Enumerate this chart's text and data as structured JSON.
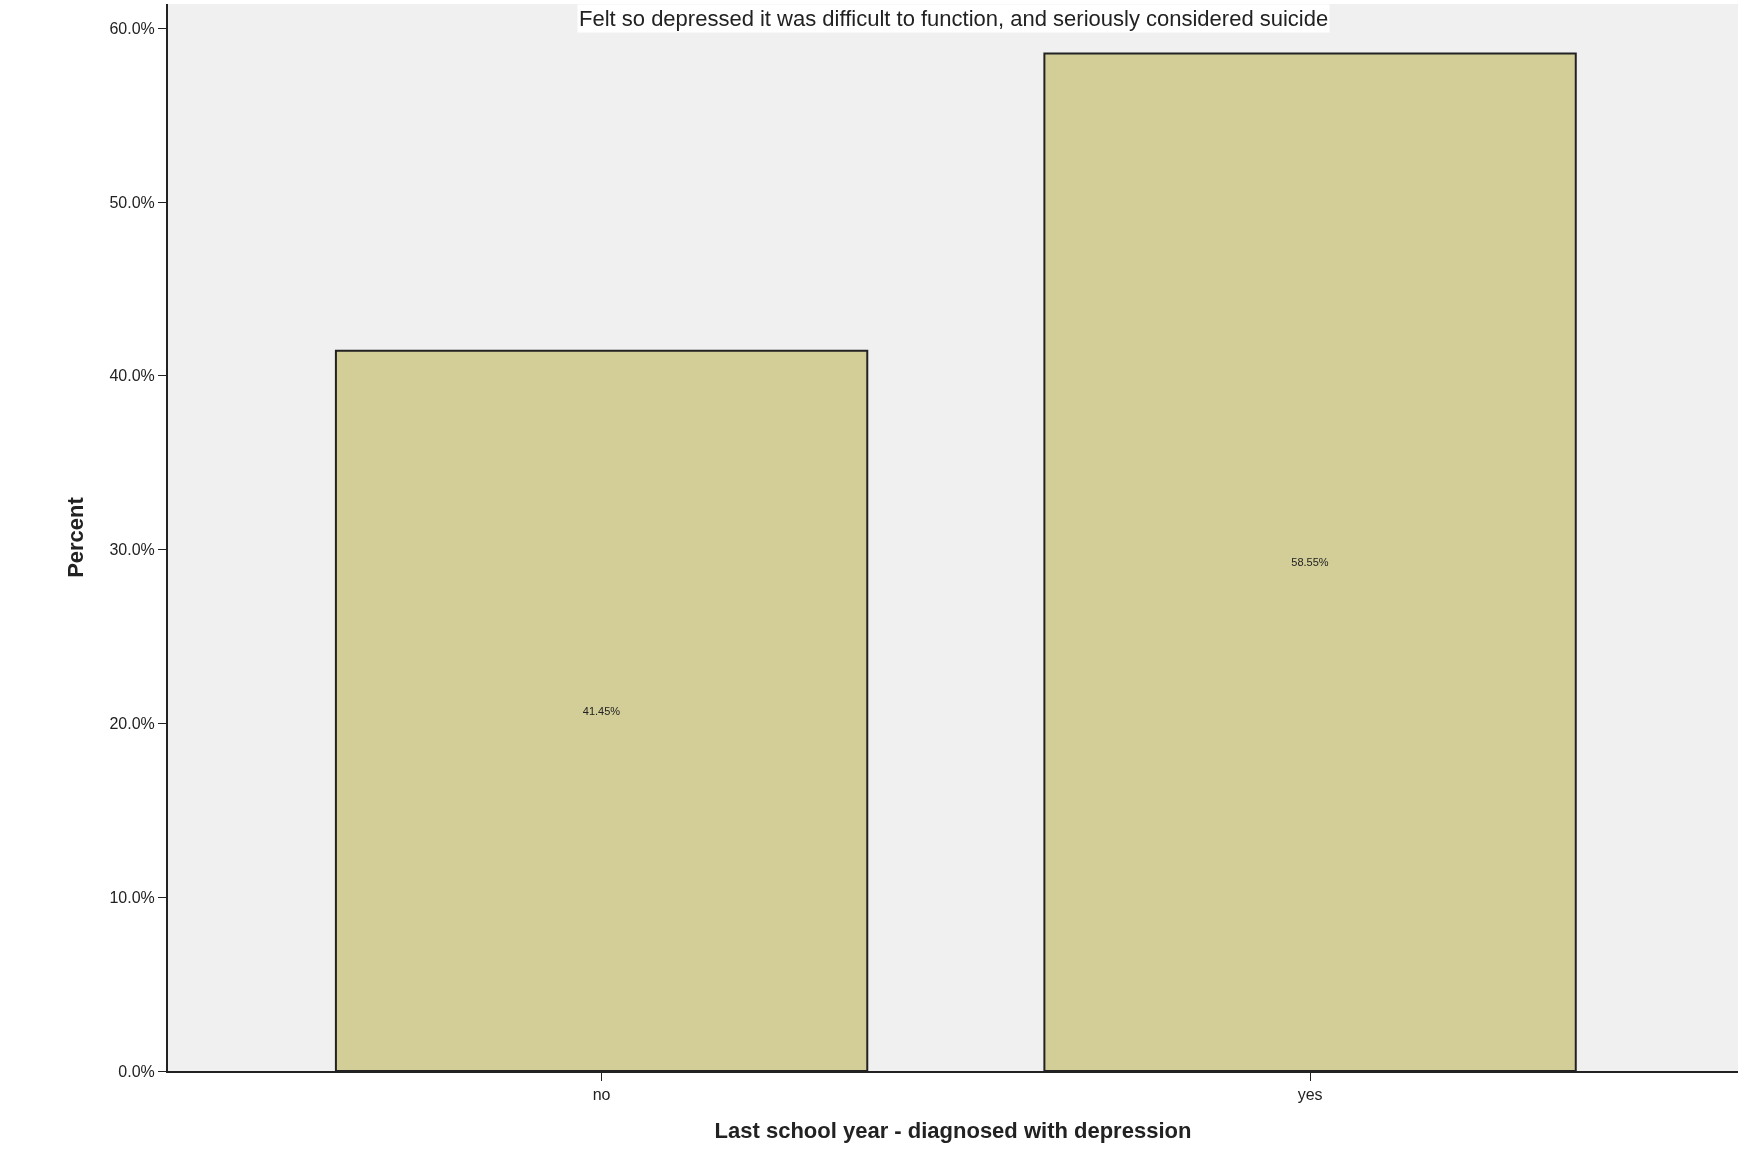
{
  "chart_data": {
    "type": "bar",
    "title": "Felt so depressed it was difficult to function, and seriously considered suicide",
    "xlabel": "Last school year - diagnosed with depression",
    "ylabel": "Percent",
    "categories": [
      "no",
      "yes"
    ],
    "values": [
      41.45,
      58.55
    ],
    "value_labels": [
      "41.45%",
      "58.55%"
    ],
    "color": "#d3ce97",
    "ylim": [
      0,
      61.4
    ],
    "yticks": [
      {
        "value": 0,
        "label": "0.0%"
      },
      {
        "value": 10,
        "label": "10.0%"
      },
      {
        "value": 20,
        "label": "20.0%"
      },
      {
        "value": 30,
        "label": "30.0%"
      },
      {
        "value": 40,
        "label": "40.0%"
      },
      {
        "value": 50,
        "label": "50.0%"
      },
      {
        "value": 60,
        "label": "60.0%"
      }
    ],
    "grid": false,
    "legend": false
  }
}
